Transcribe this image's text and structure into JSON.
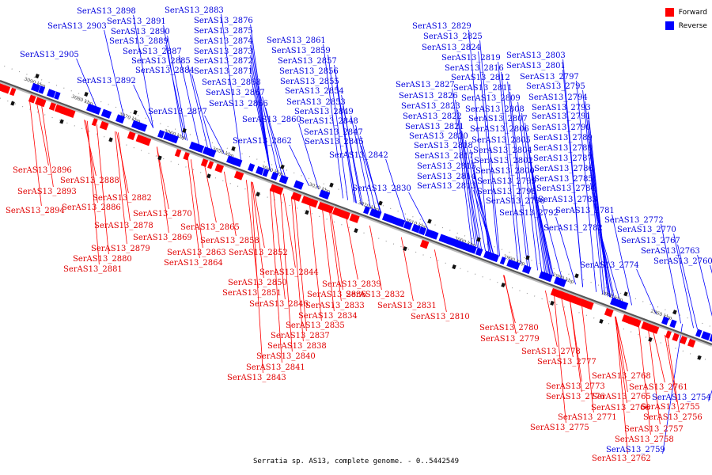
{
  "legend": [
    {
      "label": "Forward",
      "color": "#ff0000"
    },
    {
      "label": "Reverse",
      "color": "#0000ff"
    }
  ],
  "caption": "Serratia sp. AS13, complete genome. - 0..5442549",
  "ticks": [
    "3090 kbp",
    "3080 kbp",
    "3070 kbp",
    "3060 kbp",
    "3050 kbp",
    "3040 kbp",
    "3030 kbp",
    "3020 kbp",
    "3010 kbp",
    "3000 kbp",
    "2990 kbp",
    "2980 kbp",
    "2970 kbp",
    "2960 kbp"
  ],
  "reverse_labels": [
    "SerAS13_2898",
    "SerAS13_2891",
    "SerAS13_2903",
    "SerAS13_2890",
    "SerAS13_2889",
    "SerAS13_2905",
    "SerAS13_2887",
    "SerAS13_2885",
    "SerAS13_2884",
    "SerAS13_2892",
    "SerAS13_2883",
    "SerAS13_2876",
    "SerAS13_2875",
    "SerAS13_2874",
    "SerAS13_2873",
    "SerAS13_2872",
    "SerAS13_2871",
    "SerAS13_2868",
    "SerAS13_2867",
    "SerAS13_2866",
    "SerAS13_2877",
    "SerAS13_2861",
    "SerAS13_2859",
    "SerAS13_2857",
    "SerAS13_2856",
    "SerAS13_2855",
    "SerAS13_2854",
    "SerAS13_2853",
    "SerAS13_2849",
    "SerAS13_2860",
    "SerAS13_2848",
    "SerAS13_2847",
    "SerAS13_2862",
    "SerAS13_2845",
    "SerAS13_2842",
    "SerAS13_2829",
    "SerAS13_2825",
    "SerAS13_2824",
    "SerAS13_2819",
    "SerAS13_2816",
    "SerAS13_2812",
    "SerAS13_2827",
    "SerAS13_2811",
    "SerAS13_2826",
    "SerAS13_2809",
    "SerAS13_2823",
    "SerAS13_2808",
    "SerAS13_2822",
    "SerAS13_2807",
    "SerAS13_2821",
    "SerAS13_2806",
    "SerAS13_2820",
    "SerAS13_2805",
    "SerAS13_2818",
    "SerAS13_2804",
    "SerAS13_2817",
    "SerAS13_2802",
    "SerAS13_2815",
    "SerAS13_2800",
    "SerAS13_2814",
    "SerAS13_2799",
    "SerAS13_2813",
    "SerAS13_2798",
    "SerAS13_2830",
    "SerAS13_2796",
    "SerAS13_2792",
    "SerAS13_2803",
    "SerAS13_2801",
    "SerAS13_2797",
    "SerAS13_2795",
    "SerAS13_2794",
    "SerAS13_2793",
    "SerAS13_2791",
    "SerAS13_2790",
    "SerAS13_2789",
    "SerAS13_2788",
    "SerAS13_2787",
    "SerAS13_2786",
    "SerAS13_2785",
    "SerAS13_2784",
    "SerAS13_2783",
    "SerAS13_2781",
    "SerAS13_2782",
    "SerAS13_2772",
    "SerAS13_2770",
    "SerAS13_2767",
    "SerAS13_2763",
    "SerAS13_2760",
    "SerAS13_2774",
    "SerAS13_2754",
    "SerAS13_2759"
  ],
  "forward_labels": [
    "SerAS13_2896",
    "SerAS13_2888",
    "SerAS13_2893",
    "SerAS13_2882",
    "SerAS13_2894",
    "SerAS13_2886",
    "SerAS13_2870",
    "SerAS13_2878",
    "SerAS13_2865",
    "SerAS13_2869",
    "SerAS13_2858",
    "SerAS13_2879",
    "SerAS13_2863",
    "SerAS13_2880",
    "SerAS13_2864",
    "SerAS13_2881",
    "SerAS13_2852",
    "SerAS13_2844",
    "SerAS13_2850",
    "SerAS13_2839",
    "SerAS13_2851",
    "SerAS13_2836",
    "SerAS13_2832",
    "SerAS13_2846",
    "SerAS13_2833",
    "SerAS13_2831",
    "SerAS13_2834",
    "SerAS13_2810",
    "SerAS13_2835",
    "SerAS13_2837",
    "SerAS13_2838",
    "SerAS13_2840",
    "SerAS13_2841",
    "SerAS13_2843",
    "SerAS13_2780",
    "SerAS13_2779",
    "SerAS13_2778",
    "SerAS13_2777",
    "SerAS13_2768",
    "SerAS13_2773",
    "SerAS13_2761",
    "SerAS13_2776",
    "SerAS13_2765",
    "SerAS13_2766",
    "SerAS13_2755",
    "SerAS13_2771",
    "SerAS13_2756",
    "SerAS13_2775",
    "SerAS13_2757",
    "SerAS13_2758",
    "SerAS13_2762"
  ]
}
